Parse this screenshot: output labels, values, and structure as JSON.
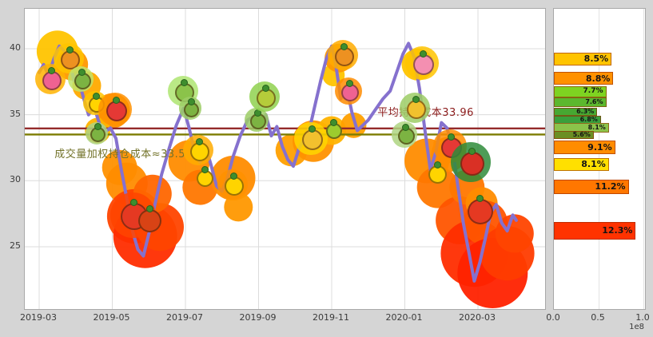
{
  "figure": {
    "background": "#d5d5d5"
  },
  "chart_data": {
    "type": "line",
    "title": "",
    "x_axis": {
      "ticks": [
        "2019-03",
        "2019-05",
        "2019-07",
        "2019-09",
        "2019-11",
        "2020-01",
        "2020-03"
      ],
      "unit": "month"
    },
    "y_axis": {
      "ticks": [
        40,
        35,
        30,
        25
      ],
      "range": [
        21,
        43
      ]
    },
    "price_series": {
      "name": "price",
      "color": "#8571ce",
      "points": [
        [
          0.0,
          38.2
        ],
        [
          0.12,
          38.8
        ],
        [
          0.25,
          38.0
        ],
        [
          0.4,
          39.2
        ],
        [
          0.55,
          40.2
        ],
        [
          0.7,
          39.8
        ],
        [
          0.82,
          39.2
        ],
        [
          0.95,
          37.6
        ],
        [
          1.05,
          38.0
        ],
        [
          1.2,
          36.4
        ],
        [
          1.35,
          35.0
        ],
        [
          1.5,
          35.6
        ],
        [
          1.65,
          34.3
        ],
        [
          1.8,
          33.7
        ],
        [
          1.95,
          34.0
        ],
        [
          2.1,
          33.2
        ],
        [
          2.25,
          30.8
        ],
        [
          2.4,
          28.6
        ],
        [
          2.55,
          26.2
        ],
        [
          2.7,
          24.8
        ],
        [
          2.85,
          24.3
        ],
        [
          3.0,
          26.0
        ],
        [
          3.15,
          28.0
        ],
        [
          3.35,
          30.5
        ],
        [
          3.55,
          32.4
        ],
        [
          3.75,
          34.2
        ],
        [
          3.95,
          35.5
        ],
        [
          4.1,
          34.0
        ],
        [
          4.25,
          32.2
        ],
        [
          4.4,
          31.4
        ],
        [
          4.55,
          32.6
        ],
        [
          4.7,
          31.2
        ],
        [
          4.85,
          29.6
        ],
        [
          5.0,
          29.2
        ],
        [
          5.15,
          30.2
        ],
        [
          5.3,
          31.8
        ],
        [
          5.5,
          33.4
        ],
        [
          5.7,
          34.6
        ],
        [
          5.9,
          34.9
        ],
        [
          6.05,
          34.2
        ],
        [
          6.2,
          35.0
        ],
        [
          6.35,
          33.4
        ],
        [
          6.5,
          34.1
        ],
        [
          6.65,
          32.6
        ],
        [
          6.8,
          31.6
        ],
        [
          6.95,
          31.1
        ],
        [
          7.1,
          32.4
        ],
        [
          7.25,
          33.2
        ],
        [
          7.4,
          34.0
        ],
        [
          7.55,
          35.8
        ],
        [
          7.7,
          37.6
        ],
        [
          7.85,
          39.2
        ],
        [
          8.0,
          40.2
        ],
        [
          8.1,
          39.0
        ],
        [
          8.25,
          36.2
        ],
        [
          8.4,
          37.2
        ],
        [
          8.55,
          35.2
        ],
        [
          8.7,
          33.8
        ],
        [
          8.85,
          34.2
        ],
        [
          9.0,
          34.6
        ],
        [
          9.2,
          35.4
        ],
        [
          9.4,
          36.2
        ],
        [
          9.6,
          36.8
        ],
        [
          9.8,
          38.4
        ],
        [
          9.95,
          39.6
        ],
        [
          10.1,
          40.4
        ],
        [
          10.25,
          39.4
        ],
        [
          10.4,
          37.0
        ],
        [
          10.55,
          33.8
        ],
        [
          10.7,
          30.8
        ],
        [
          10.85,
          32.2
        ],
        [
          11.0,
          34.4
        ],
        [
          11.15,
          34.0
        ],
        [
          11.3,
          32.6
        ],
        [
          11.45,
          29.6
        ],
        [
          11.6,
          26.8
        ],
        [
          11.75,
          24.6
        ],
        [
          11.9,
          22.4
        ],
        [
          12.05,
          23.8
        ],
        [
          12.2,
          25.6
        ],
        [
          12.35,
          27.6
        ],
        [
          12.5,
          28.2
        ],
        [
          12.65,
          26.8
        ],
        [
          12.8,
          26.2
        ],
        [
          12.95,
          27.4
        ],
        [
          13.05,
          27.0
        ]
      ]
    },
    "cost_lines": [
      {
        "label": "平均持仓成本33.96",
        "value": 33.96,
        "color": "#942b2b",
        "label_color": "#8b1a1a",
        "label_t": 9.25,
        "label_p": 35.8
      },
      {
        "label": "成交量加权持仓成本≈33.5",
        "value": 33.5,
        "color": "#7c7c00",
        "label_color": "#73732a",
        "label_t": 0.42,
        "label_p": 32.7
      }
    ],
    "volume_bubbles": [
      {
        "t": 0.5,
        "p": 39.8,
        "r": 26,
        "color": "#ffc400"
      },
      {
        "t": 0.9,
        "p": 38.8,
        "r": 20,
        "color": "#ff9800"
      },
      {
        "t": 1.3,
        "p": 37.2,
        "r": 18,
        "color": "#ffaa00"
      },
      {
        "t": 2.0,
        "p": 35.3,
        "r": 22,
        "color": "#ff9100"
      },
      {
        "t": 1.6,
        "p": 33.8,
        "r": 16,
        "color": "#ffb300"
      },
      {
        "t": 2.2,
        "p": 31.0,
        "r": 22,
        "color": "#ff9100"
      },
      {
        "t": 2.4,
        "p": 29.8,
        "r": 26,
        "color": "#ff8c00"
      },
      {
        "t": 2.6,
        "p": 27.3,
        "r": 34,
        "color": "#ff4400"
      },
      {
        "t": 2.9,
        "p": 25.8,
        "r": 40,
        "color": "#ff2d00"
      },
      {
        "t": 3.3,
        "p": 26.5,
        "r": 30,
        "color": "#ff4400"
      },
      {
        "t": 3.1,
        "p": 29.0,
        "r": 24,
        "color": "#ff6600"
      },
      {
        "t": 4.1,
        "p": 31.5,
        "r": 26,
        "color": "#ff8c00"
      },
      {
        "t": 4.4,
        "p": 29.5,
        "r": 22,
        "color": "#ff7700"
      },
      {
        "t": 5.3,
        "p": 30.2,
        "r": 28,
        "color": "#ff8c00"
      },
      {
        "t": 5.45,
        "p": 28.0,
        "r": 18,
        "color": "#ff9800"
      },
      {
        "t": 6.9,
        "p": 32.3,
        "r": 20,
        "color": "#ffa000"
      },
      {
        "t": 7.5,
        "p": 33.0,
        "r": 26,
        "color": "#ff9100"
      },
      {
        "t": 8.0,
        "p": 33.8,
        "r": 18,
        "color": "#ffb300"
      },
      {
        "t": 8.05,
        "p": 38.0,
        "r": 14,
        "color": "#ffc400"
      },
      {
        "t": 8.2,
        "p": 39.3,
        "r": 18,
        "color": "#ff9800"
      },
      {
        "t": 8.6,
        "p": 34.2,
        "r": 16,
        "color": "#ffa000"
      },
      {
        "t": 10.35,
        "p": 38.8,
        "r": 20,
        "color": "#ffc400"
      },
      {
        "t": 10.6,
        "p": 31.5,
        "r": 28,
        "color": "#ff8c00"
      },
      {
        "t": 10.9,
        "p": 29.5,
        "r": 26,
        "color": "#ff7700"
      },
      {
        "t": 11.2,
        "p": 32.0,
        "r": 22,
        "color": "#ff8c00"
      },
      {
        "t": 11.5,
        "p": 27.0,
        "r": 30,
        "color": "#ff5500"
      },
      {
        "t": 11.7,
        "p": 29.5,
        "r": 22,
        "color": "#ff7700"
      },
      {
        "t": 11.9,
        "p": 24.5,
        "r": 42,
        "color": "#ff2d00"
      },
      {
        "t": 12.1,
        "p": 28.3,
        "r": 20,
        "color": "#ff8c00"
      },
      {
        "t": 12.2,
        "p": 26.8,
        "r": 28,
        "color": "#ff5500"
      },
      {
        "t": 12.4,
        "p": 23.0,
        "r": 44,
        "color": "#ff2200"
      },
      {
        "t": 12.8,
        "p": 24.5,
        "r": 34,
        "color": "#ff3c00"
      },
      {
        "t": 13.0,
        "p": 26.0,
        "r": 24,
        "color": "#ff4400"
      }
    ],
    "distribution": {
      "orientation": "horizontal",
      "x_ticks": [
        "0.0",
        "0.5",
        "1.0"
      ],
      "scale_label": "1e8",
      "bars": [
        {
          "pct": "8.5%",
          "volume_1e8": 0.6,
          "price": 39.3,
          "color": "#ffc400",
          "bin_h": 14
        },
        {
          "pct": "8.8%",
          "volume_1e8": 0.62,
          "price": 37.8,
          "color": "#ff9100",
          "bin_h": 14
        },
        {
          "pct": "7.7%",
          "volume_1e8": 0.54,
          "price": 36.8,
          "color": "#7ed321",
          "bin_h": 12
        },
        {
          "pct": "7.6%",
          "volume_1e8": 0.54,
          "price": 36.0,
          "color": "#5cb82e",
          "bin_h": 10
        },
        {
          "pct": "6.3%",
          "volume_1e8": 0.44,
          "price": 35.3,
          "color": "#46a832",
          "bin_h": 8
        },
        {
          "pct": "6.8%",
          "volume_1e8": 0.48,
          "price": 34.7,
          "color": "#39a03c",
          "bin_h": 8
        },
        {
          "pct": "8.1%",
          "volume_1e8": 0.57,
          "price": 34.1,
          "color": "#8bc34a",
          "bin_h": 10
        },
        {
          "pct": "5.6%",
          "volume_1e8": 0.4,
          "price": 33.5,
          "color": "#6b8e23",
          "bin_h": 8
        },
        {
          "pct": "9.1%",
          "volume_1e8": 0.64,
          "price": 32.6,
          "color": "#ff8c00",
          "bin_h": 15
        },
        {
          "pct": "8.1%",
          "volume_1e8": 0.57,
          "price": 31.3,
          "color": "#ffe000",
          "bin_h": 14
        },
        {
          "pct": "11.2%",
          "volume_1e8": 0.79,
          "price": 29.6,
          "color": "#ff7700",
          "bin_h": 16
        },
        {
          "pct": "12.3%",
          "volume_1e8": 0.87,
          "price": 26.3,
          "color": "#ff3300",
          "bin_h": 20
        }
      ]
    }
  },
  "decorations": [
    {
      "name": "radish",
      "t": 0.31,
      "p": 37.7,
      "size": 20,
      "color": "#ef6292",
      "halo": "#ffb300"
    },
    {
      "name": "carrot",
      "t": 0.81,
      "p": 39.3,
      "size": 20,
      "color": "#ed9121",
      "halo": "#ffc400"
    },
    {
      "name": "peas",
      "t": 1.14,
      "p": 37.7,
      "size": 17,
      "color": "#7cb342",
      "halo": "#c0e36a"
    },
    {
      "name": "banana",
      "t": 1.53,
      "p": 35.9,
      "size": 16,
      "color": "#ffd400",
      "halo": "#ffc400"
    },
    {
      "name": "strawberry",
      "t": 2.08,
      "p": 35.4,
      "size": 22,
      "color": "#e53935",
      "halo": "#ff9100"
    },
    {
      "name": "peas",
      "t": 1.57,
      "p": 33.6,
      "size": 15,
      "color": "#7cb342",
      "halo": "#aed581"
    },
    {
      "name": "tomato",
      "t": 2.56,
      "p": 27.4,
      "size": 30,
      "color": "#e53922",
      "halo": "#ff4400"
    },
    {
      "name": "tomato",
      "t": 2.99,
      "p": 27.1,
      "size": 25,
      "color": "#d84315",
      "halo": null
    },
    {
      "name": "peas",
      "t": 3.93,
      "p": 36.8,
      "size": 20,
      "color": "#8bc34a",
      "halo": "#aee571"
    },
    {
      "name": "peas",
      "t": 4.13,
      "p": 35.5,
      "size": 15,
      "color": "#7cb342",
      "halo": "#9ccc65"
    },
    {
      "name": "banana",
      "t": 4.35,
      "p": 32.3,
      "size": 20,
      "color": "#ffd400",
      "halo": "#ffab00"
    },
    {
      "name": "banana",
      "t": 4.5,
      "p": 30.3,
      "size": 17,
      "color": "#ffd400",
      "halo": null
    },
    {
      "name": "banana",
      "t": 5.29,
      "p": 29.7,
      "size": 20,
      "color": "#ffd400",
      "halo": "#ff9100"
    },
    {
      "name": "peas",
      "t": 5.95,
      "p": 34.6,
      "size": 16,
      "color": "#7cb342",
      "halo": "#9ccc65"
    },
    {
      "name": "pear",
      "t": 6.16,
      "p": 36.4,
      "size": 20,
      "color": "#b5cc3a",
      "halo": "#8fd14f"
    },
    {
      "name": "pineapple",
      "t": 7.43,
      "p": 33.2,
      "size": 22,
      "color": "#f2c12e",
      "halo": "#ffd600"
    },
    {
      "name": "apple",
      "t": 8.02,
      "p": 33.9,
      "size": 16,
      "color": "#9ccc2e",
      "halo": null
    },
    {
      "name": "carrot",
      "t": 8.31,
      "p": 39.5,
      "size": 20,
      "color": "#ed9121",
      "halo": "#ffab00"
    },
    {
      "name": "radish",
      "t": 8.46,
      "p": 36.8,
      "size": 18,
      "color": "#ef6292",
      "halo": "#ff8c00"
    },
    {
      "name": "peas",
      "t": 9.99,
      "p": 33.5,
      "size": 17,
      "color": "#7cb342",
      "halo": "#aed581"
    },
    {
      "name": "radish",
      "t": 10.47,
      "p": 38.9,
      "size": 22,
      "color": "#f48fb1",
      "halo": "#ffc400"
    },
    {
      "name": "pineapple",
      "t": 10.27,
      "p": 35.5,
      "size": 20,
      "color": "#f2c12e",
      "halo": "#9ccc65"
    },
    {
      "name": "banana",
      "t": 10.86,
      "p": 30.6,
      "size": 19,
      "color": "#ffd400",
      "halo": null
    },
    {
      "name": "strawberry",
      "t": 11.23,
      "p": 32.6,
      "size": 22,
      "color": "#e53935",
      "halo": "#ff8c00"
    },
    {
      "name": "watermelon",
      "t": 11.8,
      "p": 31.4,
      "size": 26,
      "color": "#d93025",
      "halo": "#2e8b3a"
    },
    {
      "name": "tomato",
      "t": 12.02,
      "p": 27.8,
      "size": 28,
      "color": "#e53922",
      "halo": null
    }
  ]
}
